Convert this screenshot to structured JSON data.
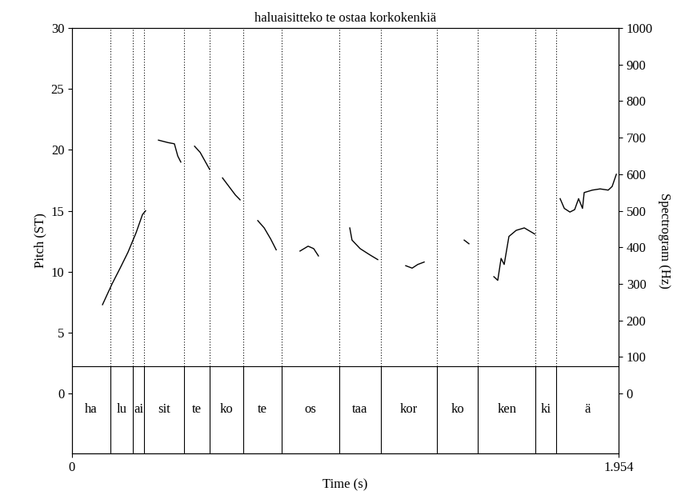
{
  "chart_data": {
    "type": "line",
    "title": "haluaisitteko te ostaa korkokenkiä",
    "x_label": "Time (s)",
    "y_label": "Pitch (ST)",
    "y2_label": "Spectrogram (Hz)",
    "xlim": [
      0,
      1.954
    ],
    "xticks": [
      0,
      1.954
    ],
    "ylim": [
      -4.9,
      30
    ],
    "yticks": [
      0,
      5,
      10,
      15,
      20,
      25,
      30
    ],
    "y2lim": [
      -164,
      1000
    ],
    "y2ticks": [
      0,
      100,
      200,
      300,
      400,
      500,
      600,
      700,
      800,
      900,
      1000
    ],
    "x": [
      0.109,
      0.143,
      0.172,
      0.2,
      0.229,
      0.252,
      0.263,
      0.286,
      0.309,
      0.343,
      0.366,
      0.378,
      0.389,
      0.412,
      0.438,
      0.458,
      0.475,
      0.492,
      0.515,
      0.538,
      0.561,
      0.584,
      0.601,
      0.629,
      0.664,
      0.687,
      0.71,
      0.73,
      0.773,
      0.815,
      0.844,
      0.864,
      0.881,
      0.944,
      0.993,
      1.001,
      1.03,
      1.064,
      1.093,
      1.144,
      1.193,
      1.216,
      1.236,
      1.259,
      1.33,
      1.402,
      1.419,
      1.459,
      1.508,
      1.522,
      1.534,
      1.545,
      1.562,
      1.588,
      1.617,
      1.654,
      1.702,
      1.745,
      1.76,
      1.78,
      1.797,
      1.811,
      1.825,
      1.831,
      1.86,
      1.888,
      1.917,
      1.931,
      1.946
    ],
    "series": [
      {
        "color": "#000000",
        "line_style": "solid",
        "values": [
          7.3,
          9.0,
          10.3,
          11.6,
          13.2,
          14.7,
          15.0,
          null,
          20.8,
          20.6,
          20.5,
          19.5,
          19.0,
          null,
          20.3,
          19.8,
          19.1,
          18.4,
          null,
          17.7,
          17.0,
          16.3,
          15.9,
          null,
          14.2,
          13.6,
          12.7,
          11.8,
          null,
          11.7,
          12.1,
          11.9,
          11.3,
          null,
          13.6,
          12.6,
          11.9,
          11.4,
          11.0,
          null,
          10.5,
          10.3,
          10.6,
          10.8,
          null,
          12.6,
          12.3,
          null,
          9.6,
          9.3,
          11.1,
          10.6,
          12.9,
          13.4,
          13.6,
          13.1,
          null,
          16.0,
          15.2,
          14.9,
          15.1,
          16.0,
          15.2,
          16.5,
          16.7,
          16.8,
          16.7,
          17.0,
          18.0
        ]
      }
    ],
    "intervals": {
      "labels": [
        "ha",
        "lu",
        "ai",
        "sit",
        "te",
        "ko",
        "te",
        "os",
        "taa",
        "kor",
        "ko",
        "ken",
        "ki",
        "ä"
      ],
      "boundaries": [
        0,
        0.137,
        0.217,
        0.258,
        0.401,
        0.492,
        0.612,
        0.75,
        0.956,
        1.104,
        1.305,
        1.451,
        1.657,
        1.731,
        1.954
      ]
    }
  }
}
